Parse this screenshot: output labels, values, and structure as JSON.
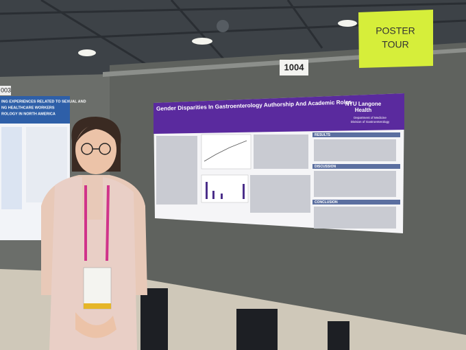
{
  "sign": {
    "lines": [
      "POSTER",
      "TOUR"
    ]
  },
  "board_number": "1004",
  "left_board_number": "003",
  "poster": {
    "title": "Gender Disparities In Gastroenterology Authorship And Academic Roles",
    "institution": [
      "NYU Langone",
      "Health"
    ],
    "department": [
      "Department of Medicine",
      "Division of Gastroenterology"
    ],
    "sections": [
      "RESULTS",
      "DISCUSSION",
      "CONCLUSION"
    ]
  },
  "left_poster": {
    "title_lines": [
      "ING EXPERIENCES RELATED TO SEXUAL AND",
      "NG HEALTHCARE WORKERS",
      "ROLOGY IN NORTH AMERICA"
    ]
  }
}
